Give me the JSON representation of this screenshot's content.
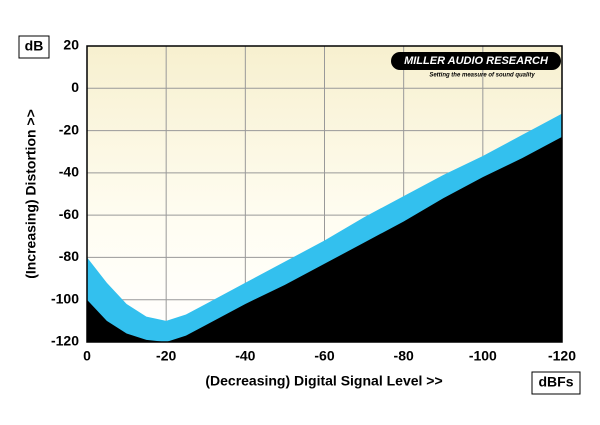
{
  "chart_data": {
    "type": "band",
    "y_label": "(Increasing) Distortion >>",
    "x_label": "(Decreasing) Digital Signal Level >>",
    "y_unit": "dB",
    "x_unit": "dBFs",
    "logo": "MILLER AUDIO RESEARCH",
    "tagline": "Setting the measure of sound quality",
    "x": [
      0,
      -5,
      -10,
      -15,
      -20,
      -25,
      -30,
      -40,
      -50,
      -60,
      -70,
      -80,
      -90,
      -100,
      -110,
      -120
    ],
    "series": [
      {
        "color": "#33c0ee",
        "values": [
          -80,
          -92,
          -102,
          -108,
          -110,
          -107,
          -102,
          -92,
          -82,
          -72,
          -61,
          -51,
          -41,
          -32,
          -22,
          -12
        ]
      },
      {
        "color": "#000000",
        "values": [
          -100,
          -110,
          -116,
          -119,
          -120,
          -117,
          -112,
          -102,
          -93,
          -83,
          -73,
          -63,
          -52,
          -42,
          -33,
          -23
        ]
      }
    ],
    "xlim": [
      0,
      -120
    ],
    "ylim": [
      -120,
      20
    ],
    "xticks": [
      0,
      -20,
      -40,
      -60,
      -80,
      -100,
      -120
    ],
    "yticks": [
      20,
      0,
      -20,
      -40,
      -60,
      -80,
      -100,
      -120
    ],
    "grid": true
  }
}
